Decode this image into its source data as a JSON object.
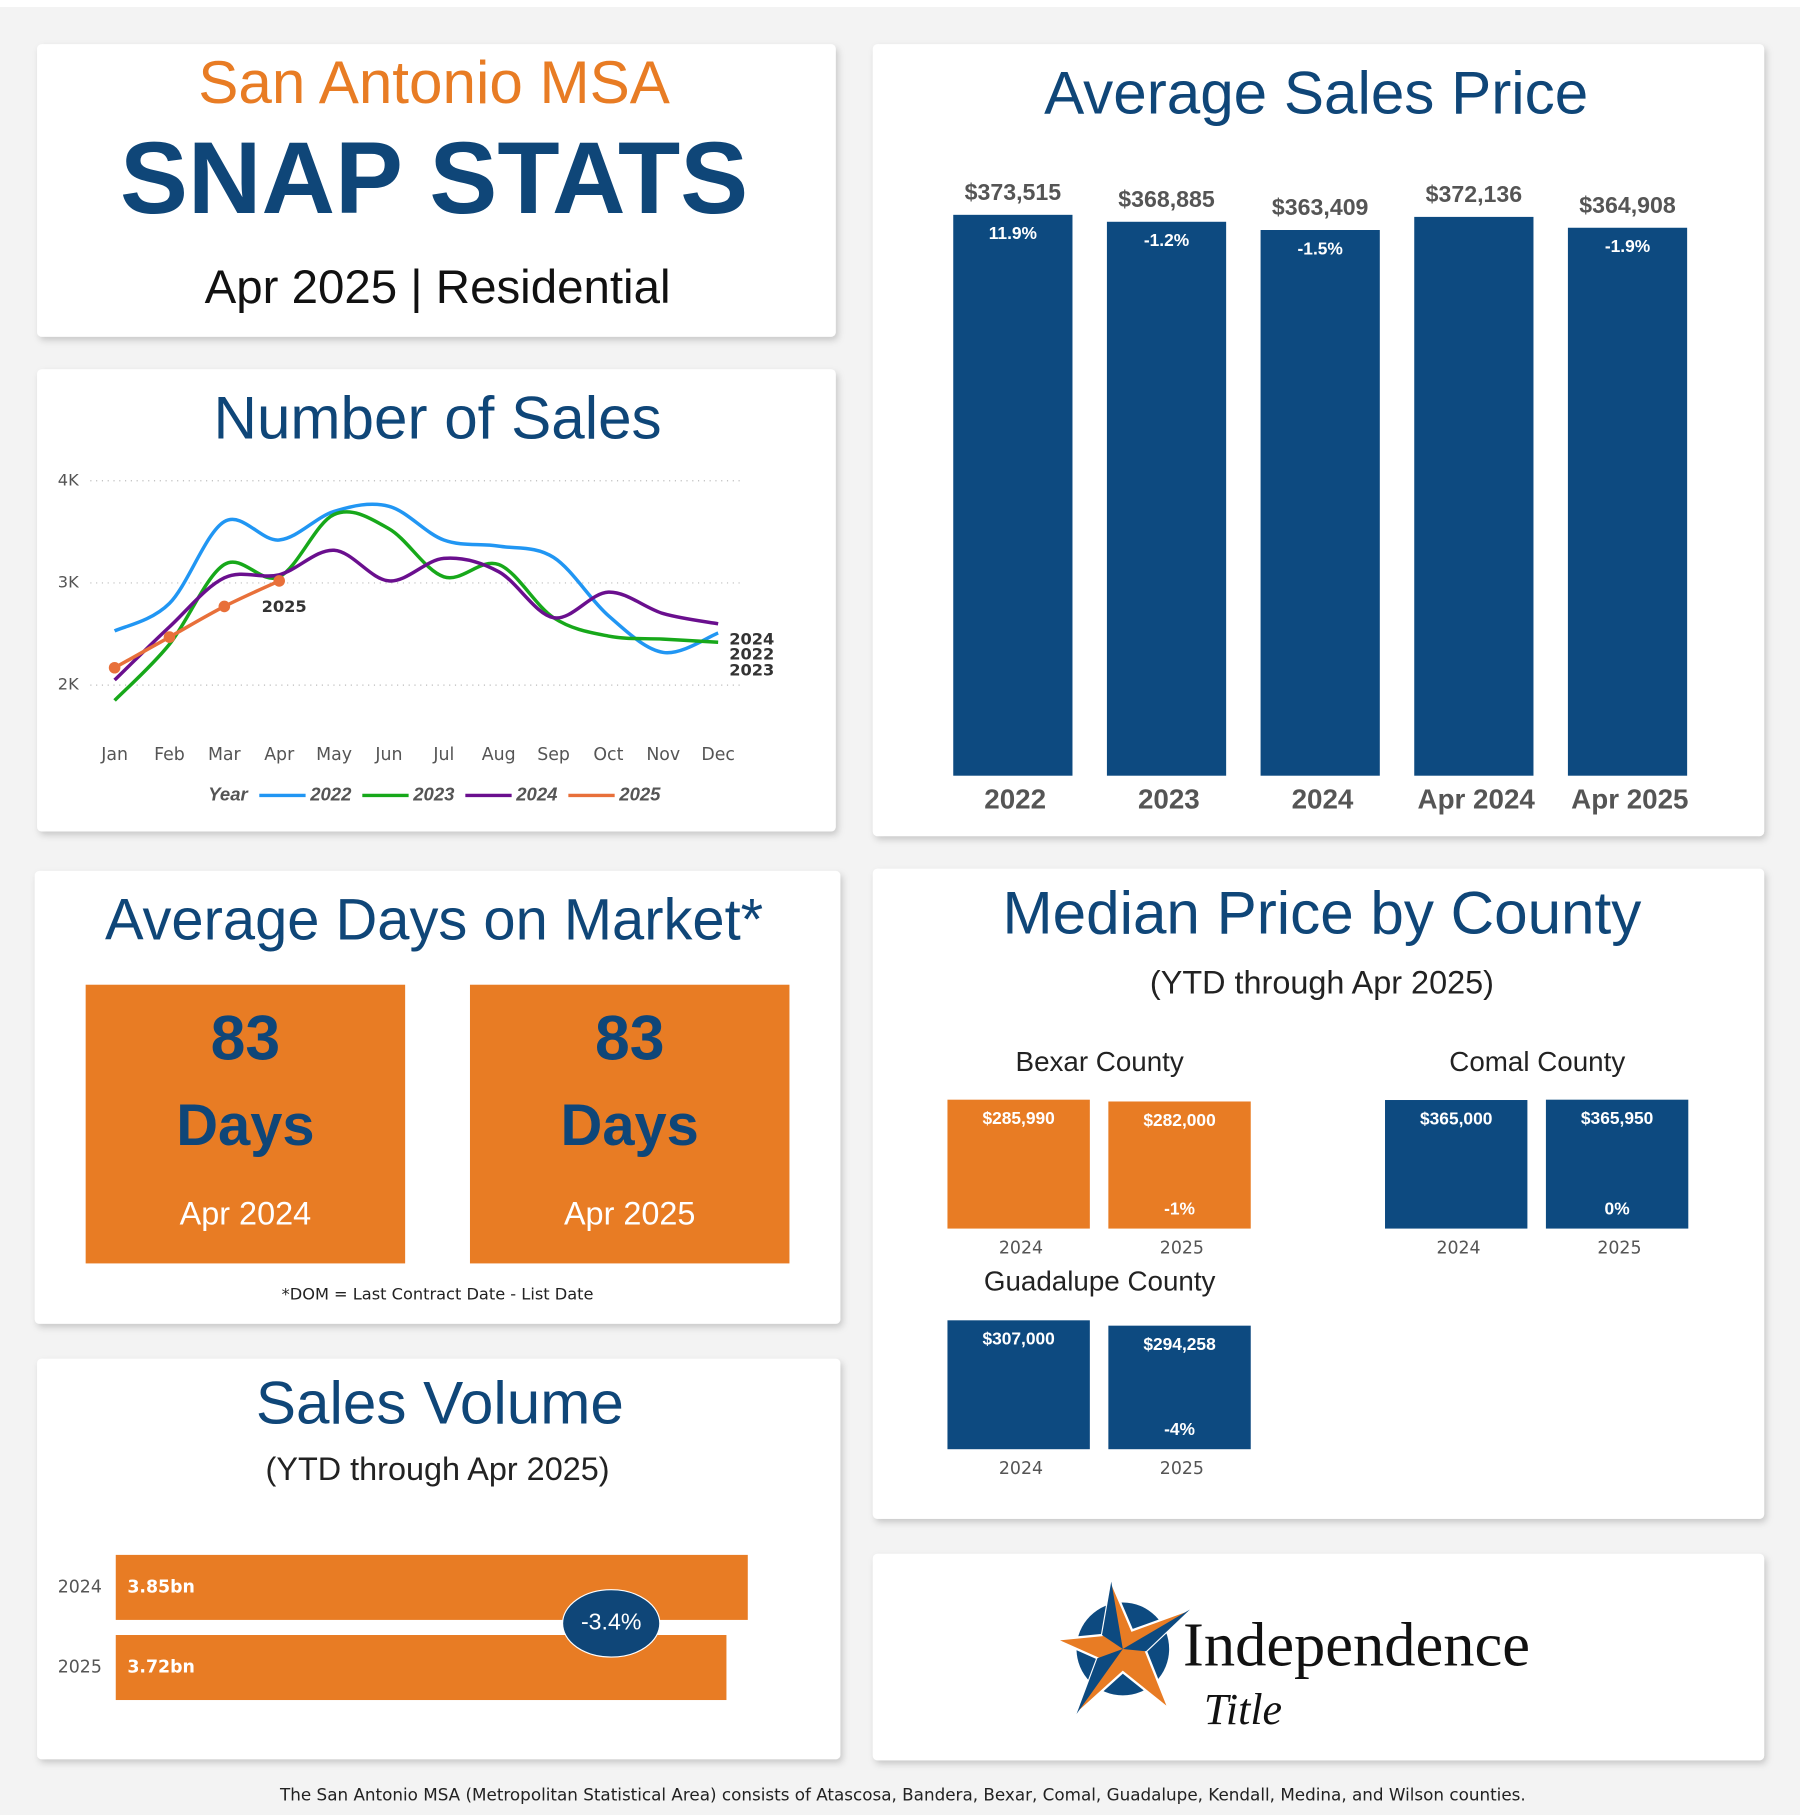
{
  "header": {
    "region": "San Antonio MSA",
    "title": "SNAP STATS",
    "subtitle": "Apr 2025 | Residential"
  },
  "chart_data": [
    {
      "type": "line",
      "title": "Number of Sales",
      "categories": [
        "Jan",
        "Feb",
        "Mar",
        "Apr",
        "May",
        "Jun",
        "Jul",
        "Aug",
        "Sep",
        "Oct",
        "Nov",
        "Dec"
      ],
      "ylim": [
        1650,
        4000
      ],
      "yticks": [
        {
          "value": 2000,
          "label": "2K"
        },
        {
          "value": 3000,
          "label": "3K"
        },
        {
          "value": 4000,
          "label": "4K"
        }
      ],
      "grid": true,
      "legend_title": "Year",
      "series": [
        {
          "name": "2022",
          "color": "#2196f3",
          "values": [
            2530,
            2800,
            3600,
            3420,
            3700,
            3750,
            3420,
            3360,
            3250,
            2680,
            2320,
            2510
          ]
        },
        {
          "name": "2023",
          "color": "#17a81a",
          "values": [
            1850,
            2400,
            3180,
            3060,
            3670,
            3530,
            3060,
            3180,
            2660,
            2480,
            2450,
            2420
          ]
        },
        {
          "name": "2024",
          "color": "#6a0f8e",
          "values": [
            2050,
            2570,
            3050,
            3080,
            3320,
            3020,
            3240,
            3110,
            2660,
            2910,
            2700,
            2600
          ]
        },
        {
          "name": "2025",
          "color": "#e8703a",
          "values": [
            2170,
            2470,
            2770,
            3020,
            null,
            null,
            null,
            null,
            null,
            null,
            null,
            null
          ]
        }
      ]
    },
    {
      "type": "bar",
      "title": "Average Sales Price",
      "categories": [
        "2022",
        "2023",
        "2024",
        "Apr 2024",
        "Apr 2025"
      ],
      "values": [
        373515,
        368885,
        363409,
        372136,
        364908
      ],
      "value_labels": [
        "$373,515",
        "$368,885",
        "$363,409",
        "$372,136",
        "$364,908"
      ],
      "change_labels": [
        "11.9%",
        "-1.2%",
        "-1.5%",
        null,
        "-1.9%"
      ],
      "color": "#0d4a80"
    },
    {
      "type": "bar_panels",
      "title": "Median Price by County",
      "subtitle": "(YTD through Apr 2025)",
      "panels": [
        {
          "name": "Bexar County",
          "color": "#e87c24",
          "categories": [
            "2024",
            "2025"
          ],
          "values": [
            285990,
            282000
          ],
          "value_labels": [
            "$285,990",
            "$282,000"
          ],
          "change_label": "-1%"
        },
        {
          "name": "Comal County",
          "color": "#0d4a80",
          "categories": [
            "2024",
            "2025"
          ],
          "values": [
            365000,
            365950
          ],
          "value_labels": [
            "$365,000",
            "$365,950"
          ],
          "change_label": "0%"
        },
        {
          "name": "Guadalupe County",
          "color": "#0d4a80",
          "categories": [
            "2024",
            "2025"
          ],
          "values": [
            307000,
            294258
          ],
          "value_labels": [
            "$307,000",
            "$294,258"
          ],
          "change_label": "-4%"
        }
      ]
    },
    {
      "type": "hbar",
      "title": "Sales Volume",
      "subtitle": "(YTD through Apr 2025)",
      "categories": [
        "2024",
        "2025"
      ],
      "values": [
        3.85,
        3.72
      ],
      "value_labels": [
        "3.85bn",
        "3.72bn"
      ],
      "color": "#e87c24",
      "change_label": "-3.4%"
    }
  ],
  "days_on_market": {
    "title": "Average Days on Market*",
    "cards": [
      {
        "value": 83,
        "unit": "Days",
        "period": "Apr 2024"
      },
      {
        "value": 83,
        "unit": "Days",
        "period": "Apr 2025"
      }
    ],
    "note": "*DOM = Last Contract Date - List Date"
  },
  "logo": {
    "name": "Independence",
    "tagline": "Title"
  },
  "footer": "The San Antonio MSA (Metropolitan Statistical Area) consists of Atascosa, Bandera, Bexar, Comal, Guadalupe, Kendall, Medina, and Wilson counties."
}
